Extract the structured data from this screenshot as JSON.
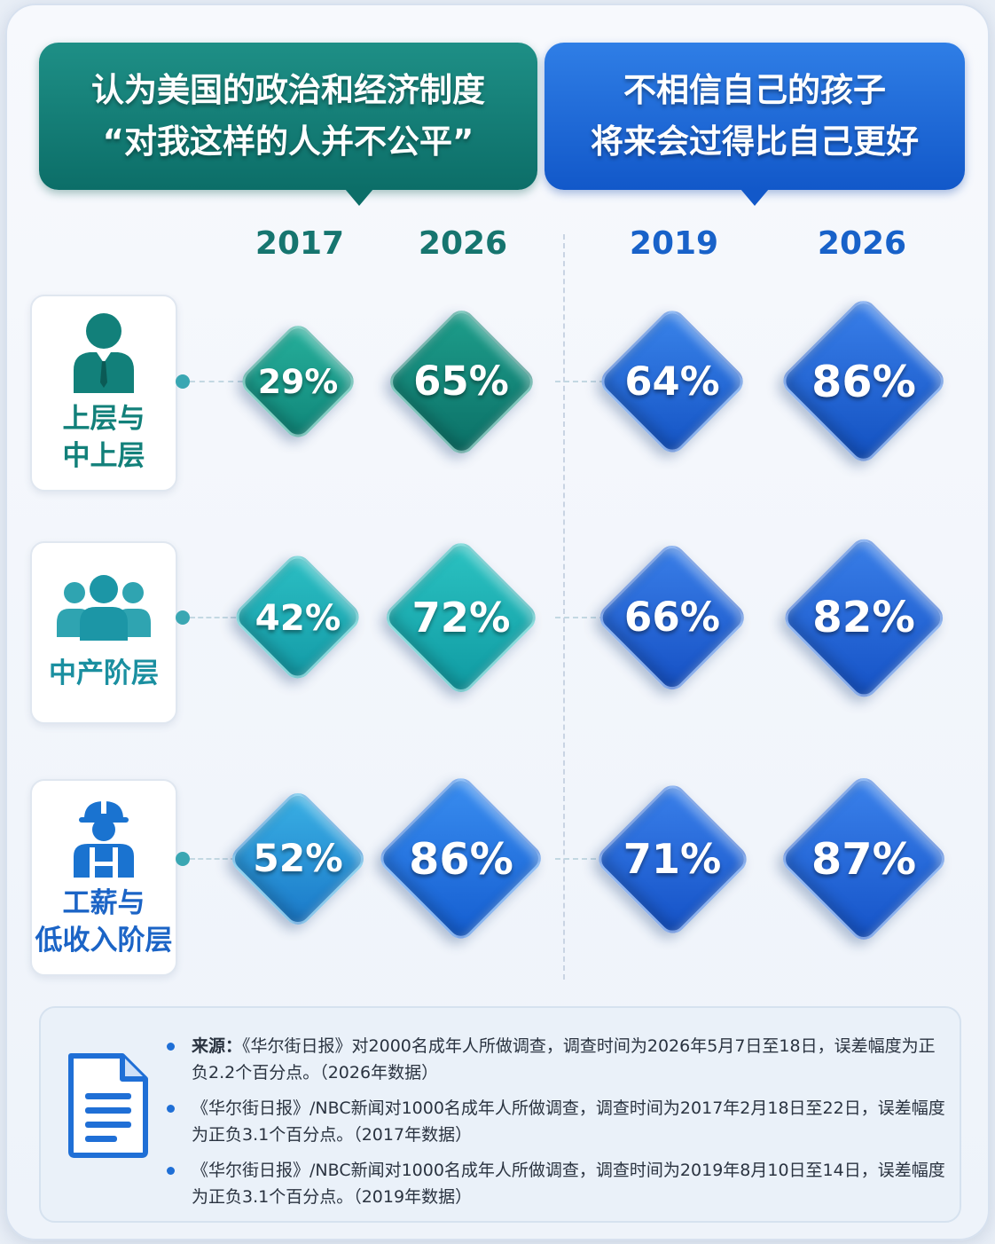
{
  "headers": {
    "left": {
      "line1": "认为美国的政治和经济制度",
      "line2": "“对我这样的人并不公平”"
    },
    "right": {
      "line1": "不相信自己的孩子",
      "line2": "将来会过得比自己更好"
    }
  },
  "years": {
    "left": [
      "2017",
      "2026"
    ],
    "right": [
      "2019",
      "2026"
    ]
  },
  "categories": [
    {
      "label": "上层与\n中上层",
      "icon": "businessman-icon"
    },
    {
      "label": "中产阶层",
      "icon": "group-icon"
    },
    {
      "label": "工薪与\n低收入阶层",
      "icon": "worker-hardhat-icon"
    }
  ],
  "chart_data": {
    "type": "table",
    "columns": [
      {
        "group": "认为美国的政治和经济制度“对我这样的人并不公平”",
        "year": "2017"
      },
      {
        "group": "认为美国的政治和经济制度“对我这样的人并不公平”",
        "year": "2026"
      },
      {
        "group": "不相信自己的孩子将来会过得比自己更好",
        "year": "2019"
      },
      {
        "group": "不相信自己的孩子将来会过得比自己更好",
        "year": "2026"
      }
    ],
    "rows": [
      {
        "category": "上层与中上层",
        "values": [
          29,
          65,
          64,
          86
        ],
        "labels": [
          "29%",
          "65%",
          "64%",
          "86%"
        ]
      },
      {
        "category": "中产阶层",
        "values": [
          42,
          72,
          66,
          82
        ],
        "labels": [
          "42%",
          "72%",
          "66%",
          "82%"
        ]
      },
      {
        "category": "工薪与低收入阶层",
        "values": [
          52,
          86,
          71,
          87
        ],
        "labels": [
          "52%",
          "86%",
          "71%",
          "87%"
        ]
      }
    ],
    "colors": {
      "teal": "#138b80",
      "blue": "#1a5fd6"
    }
  },
  "notes": {
    "source_label": "来源：",
    "items": [
      "《华尔街日报》对2000名成年人所做调查，调查时间为2026年5月7日至18日，误差幅度为正负2.2个百分点。（2026年数据）",
      "《华尔街日报》/NBC新闻对1000名成年人所做调查，调查时间为2017年2月18日至22日，误差幅度为正负3.1个百分点。（2017年数据）",
      "《华尔街日报》/NBC新闻对1000名成年人所做调查，调查时间为2019年8月10日至14日，误差幅度为正负3.1个百分点。（2019年数据）"
    ],
    "icon": "document-icon"
  }
}
